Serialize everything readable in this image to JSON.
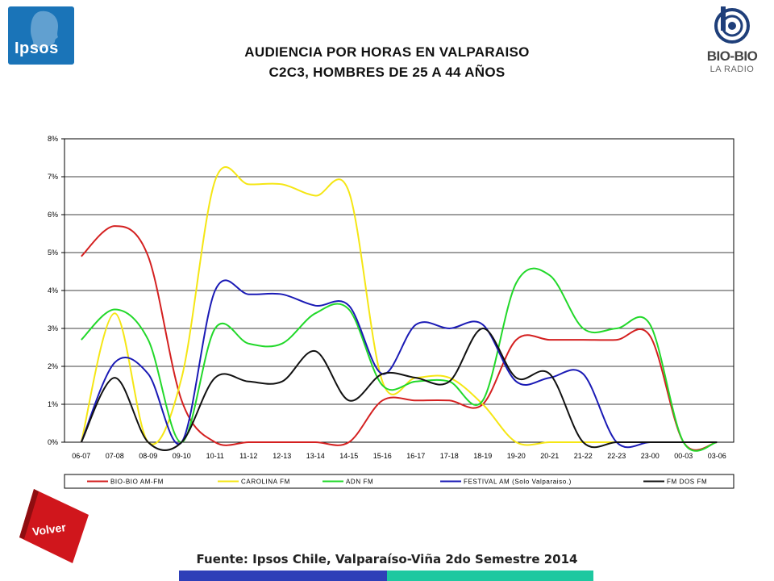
{
  "header": {
    "title_line1": "AUDIENCIA POR HORAS EN VALPARAISO",
    "title_line2": "C2C3, HOMBRES DE 25 A 44 AÑOS",
    "logo_left": "Ipsos",
    "logo_right_main": "BIO-BIO",
    "logo_right_sub": "LA RADIO"
  },
  "footer": {
    "source": "Fuente: Ipsos Chile, Valparaíso-Viña 2do Semestre 2014",
    "back_button": "Volver"
  },
  "colors": {
    "ipsos_blue": "#1a74b8",
    "volver_red": "#d0161c",
    "bar_blue": "#2e3fb8",
    "bar_teal": "#1ec8a0"
  },
  "chart_data": {
    "type": "line",
    "title": "",
    "xlabel": "",
    "ylabel": "",
    "ylim": [
      0,
      8
    ],
    "yticks": [
      "0%",
      "1%",
      "2%",
      "3%",
      "4%",
      "5%",
      "6%",
      "7%",
      "8%"
    ],
    "grid": true,
    "legend_position": "bottom",
    "categories": [
      "06-07",
      "07-08",
      "08-09",
      "09-10",
      "10-11",
      "11-12",
      "12-13",
      "13-14",
      "14-15",
      "15-16",
      "16-17",
      "17-18",
      "18-19",
      "19-20",
      "20-21",
      "21-22",
      "22-23",
      "23-00",
      "00-03",
      "03-06"
    ],
    "series": [
      {
        "name": "BIO-BIO AM-FM",
        "color": "#d42020",
        "values": [
          4.9,
          5.7,
          4.9,
          1.1,
          0.0,
          0.0,
          0.0,
          0.0,
          0.0,
          1.1,
          1.1,
          1.1,
          1.0,
          2.7,
          2.7,
          2.7,
          2.7,
          2.8,
          0.0,
          0.0
        ]
      },
      {
        "name": "CAROLINA FM",
        "color": "#f5e614",
        "values": [
          0.0,
          3.4,
          0.0,
          1.7,
          6.9,
          6.8,
          6.8,
          6.5,
          6.6,
          1.6,
          1.7,
          1.7,
          1.0,
          0.0,
          0.0,
          0.0,
          0.0,
          0.0,
          0.0,
          0.0
        ]
      },
      {
        "name": "ADN FM",
        "color": "#22d82a",
        "values": [
          2.7,
          3.5,
          2.7,
          0.0,
          3.0,
          2.6,
          2.6,
          3.4,
          3.5,
          1.5,
          1.6,
          1.6,
          1.1,
          4.2,
          4.4,
          3.0,
          3.0,
          3.1,
          0.0,
          0.0
        ]
      },
      {
        "name": "FESTIVAL AM (Solo Valparaiso.)",
        "color": "#1a1ab5",
        "values": [
          0.0,
          2.1,
          1.8,
          0.0,
          4.0,
          3.9,
          3.9,
          3.6,
          3.6,
          1.8,
          3.1,
          3.0,
          3.1,
          1.6,
          1.7,
          1.8,
          0.0,
          0.0,
          0.0,
          0.0
        ]
      },
      {
        "name": "FM DOS FM",
        "color": "#111111",
        "values": [
          0.0,
          1.7,
          0.0,
          0.0,
          1.7,
          1.6,
          1.6,
          2.4,
          1.1,
          1.8,
          1.7,
          1.6,
          3.0,
          1.7,
          1.8,
          0.0,
          0.0,
          0.0,
          0.0,
          0.0
        ]
      }
    ]
  }
}
